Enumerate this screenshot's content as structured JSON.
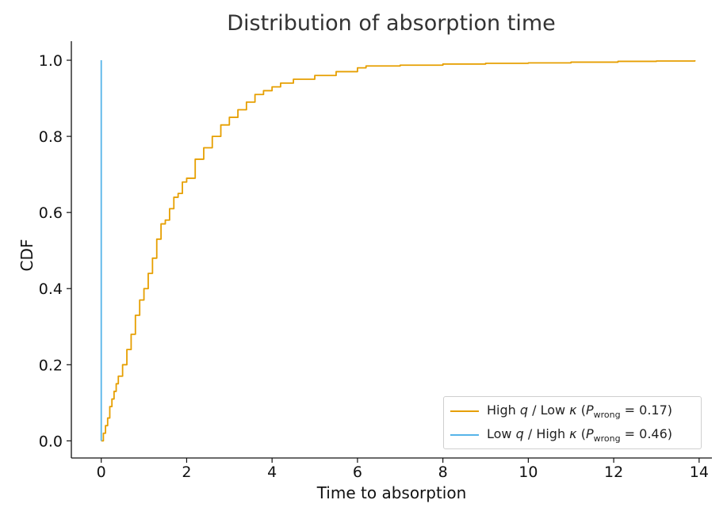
{
  "chart_data": {
    "type": "line",
    "title": "Distribution of absorption time",
    "xlabel": "Time to absorption",
    "ylabel": "CDF",
    "xlim": [
      -0.7,
      14.3
    ],
    "ylim": [
      -0.045,
      1.05
    ],
    "xticks": [
      0,
      2,
      4,
      6,
      8,
      10,
      12,
      14
    ],
    "xtick_labels": [
      "0",
      "2",
      "4",
      "6",
      "8",
      "10",
      "12",
      "14"
    ],
    "yticks": [
      0.0,
      0.2,
      0.4,
      0.6,
      0.8,
      1.0
    ],
    "ytick_labels": [
      "0.0",
      "0.2",
      "0.4",
      "0.6",
      "0.8",
      "1.0"
    ],
    "grid": false,
    "legend_position": "lower-right",
    "series": [
      {
        "label": "High q / Low κ (P_wrong = 0.17)",
        "label_parts": {
          "pre": "High ",
          "var1": "q",
          "mid": " / Low ",
          "var2": "κ",
          "open": " (",
          "p": "P",
          "sub": "wrong",
          "value": " = 0.17)"
        },
        "color": "#E69F00",
        "x": [
          0,
          0.05,
          0.1,
          0.15,
          0.2,
          0.25,
          0.3,
          0.35,
          0.4,
          0.5,
          0.6,
          0.7,
          0.8,
          0.9,
          1.0,
          1.1,
          1.2,
          1.3,
          1.4,
          1.5,
          1.6,
          1.7,
          1.8,
          1.9,
          2.0,
          2.2,
          2.4,
          2.6,
          2.8,
          3.0,
          3.2,
          3.4,
          3.6,
          3.8,
          4.0,
          4.2,
          4.5,
          5.0,
          5.5,
          6.0,
          6.2,
          7.0,
          8.0,
          9.0,
          10.0,
          11.0,
          12.1,
          13.0,
          13.9
        ],
        "y": [
          0.0,
          0.02,
          0.04,
          0.06,
          0.09,
          0.11,
          0.13,
          0.15,
          0.17,
          0.2,
          0.24,
          0.28,
          0.33,
          0.37,
          0.4,
          0.44,
          0.48,
          0.53,
          0.57,
          0.58,
          0.61,
          0.64,
          0.65,
          0.68,
          0.69,
          0.74,
          0.77,
          0.8,
          0.83,
          0.85,
          0.87,
          0.89,
          0.91,
          0.92,
          0.93,
          0.94,
          0.95,
          0.96,
          0.97,
          0.98,
          0.985,
          0.987,
          0.99,
          0.992,
          0.993,
          0.995,
          0.997,
          0.998,
          1.0
        ]
      },
      {
        "label": "Low q / High κ (P_wrong = 0.46)",
        "label_parts": {
          "pre": "Low ",
          "var1": "q",
          "mid": " / High ",
          "var2": "κ",
          "open": " (",
          "p": "P",
          "sub": "wrong",
          "value": " = 0.46)"
        },
        "color": "#56B4E9",
        "x": [
          0,
          0
        ],
        "y": [
          0.0,
          1.0
        ]
      }
    ]
  }
}
